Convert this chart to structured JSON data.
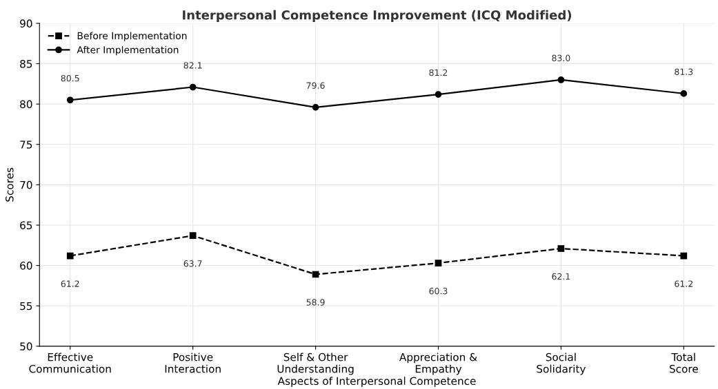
{
  "chart_data": {
    "type": "line",
    "title": "Interpersonal Competence Improvement (ICQ Modified)",
    "xlabel": "Aspects of Interpersonal Competence",
    "ylabel": "Scores",
    "categories": [
      "Effective\nCommunication",
      "Positive\nInteraction",
      "Self & Other\nUnderstanding",
      "Appreciation &\nEmpathy",
      "Social\nSolidarity",
      "Total\nScore"
    ],
    "series": [
      {
        "name": "Before Implementation",
        "color": "#000000",
        "values": [
          61.2,
          63.7,
          58.9,
          60.3,
          62.1,
          61.2
        ],
        "value_labels": [
          "61.2",
          "63.7",
          "58.9",
          "60.3",
          "62.1",
          "61.2"
        ],
        "marker": "square",
        "line_style": "dashed"
      },
      {
        "name": "After Implementation",
        "color": "#000000",
        "values": [
          80.5,
          82.1,
          79.6,
          81.2,
          83.0,
          81.3
        ],
        "value_labels": [
          "80.5",
          "82.1",
          "79.6",
          "81.2",
          "83.0",
          "81.3"
        ],
        "marker": "circle",
        "line_style": "solid"
      }
    ],
    "ylim": [
      50,
      90
    ],
    "yticks": [
      50,
      55,
      60,
      65,
      70,
      75,
      80,
      85,
      90
    ],
    "grid": true,
    "legend": "top left"
  }
}
